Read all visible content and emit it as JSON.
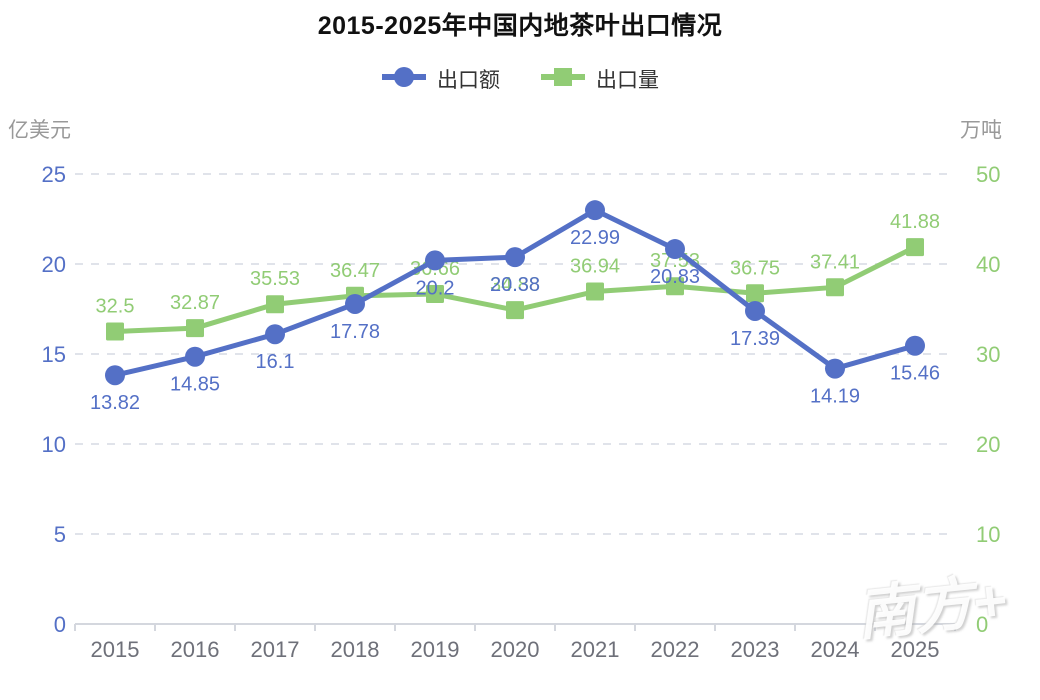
{
  "chart_data": {
    "type": "line",
    "title": "2015-2025年中国内地茶叶出口情况",
    "categories": [
      "2015",
      "2016",
      "2017",
      "2018",
      "2019",
      "2020",
      "2021",
      "2022",
      "2023",
      "2024",
      "2025"
    ],
    "series": [
      {
        "name": "出口额",
        "axis": "left",
        "color": "#5470C6",
        "symbol": "circle",
        "label_position": "bottom",
        "values": [
          13.82,
          14.85,
          16.1,
          17.78,
          20.2,
          20.38,
          22.99,
          20.83,
          17.39,
          14.19,
          15.46
        ]
      },
      {
        "name": "出口量",
        "axis": "right",
        "color": "#91CC75",
        "symbol": "square",
        "label_position": "top",
        "values": [
          32.5,
          32.87,
          35.53,
          36.47,
          36.66,
          34.88,
          36.94,
          37.53,
          36.75,
          37.41,
          41.88
        ]
      }
    ],
    "left_axis": {
      "name": "亿美元",
      "min": 0,
      "max": 25,
      "ticks": [
        0,
        5,
        10,
        15,
        20,
        25
      ],
      "color": "#5470C6"
    },
    "right_axis": {
      "name": "万吨",
      "min": 0,
      "max": 50,
      "ticks": [
        0,
        10,
        20,
        30,
        40,
        50
      ],
      "color": "#91CC75"
    },
    "grid": true,
    "legend_position": "top",
    "x_label_color": "#6E7079",
    "grid_color": "#E0E3EA",
    "axis_line_color": "#D4D7DE"
  },
  "watermark": {
    "text": "南方+"
  }
}
